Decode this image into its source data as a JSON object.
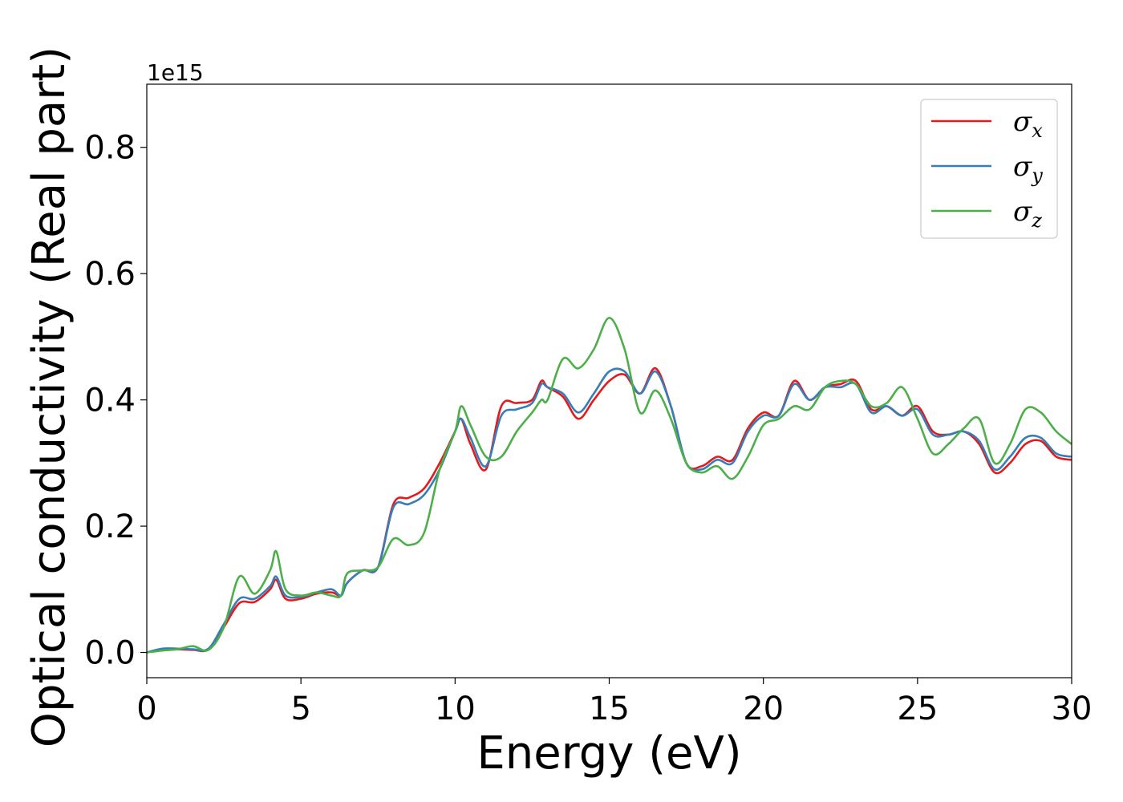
{
  "chart_data": {
    "type": "line",
    "xlabel": "Energy (eV)",
    "ylabel": "Optical conductivity (Real part)",
    "y_offset_label": "1e15",
    "xlim": [
      0,
      30
    ],
    "ylim": [
      -0.04,
      0.9
    ],
    "x_ticks": [
      0,
      5,
      10,
      15,
      20,
      25,
      30
    ],
    "x_tick_labels": [
      "0",
      "5",
      "10",
      "15",
      "20",
      "25",
      "30"
    ],
    "y_ticks": [
      0.0,
      0.2,
      0.4,
      0.6,
      0.8
    ],
    "y_tick_labels": [
      "0.0",
      "0.2",
      "0.4",
      "0.6",
      "0.8"
    ],
    "grid": false,
    "legend_position": "top-right",
    "x": [
      0,
      0.5,
      1,
      1.5,
      2,
      2.5,
      3,
      3.5,
      4,
      4.2,
      4.5,
      5,
      5.5,
      6,
      6.3,
      6.5,
      7,
      7.5,
      8,
      8.5,
      9,
      9.5,
      10,
      10.2,
      10.5,
      11,
      11.5,
      12,
      12.5,
      12.8,
      13,
      13.5,
      14,
      14.5,
      15,
      15.5,
      16,
      16.5,
      17,
      17.5,
      18,
      18.5,
      19,
      19.5,
      20,
      20.5,
      21,
      21.5,
      22,
      22.5,
      23,
      23.5,
      24,
      24.5,
      25,
      25.5,
      26,
      26.5,
      27,
      27.5,
      28,
      28.5,
      29,
      29.5,
      30
    ],
    "series": [
      {
        "name": "σx",
        "label_base": "σ",
        "label_sub": "x",
        "color": "#e41a1c",
        "values": [
          0.0,
          0.005,
          0.005,
          0.004,
          0.005,
          0.04,
          0.078,
          0.08,
          0.1,
          0.115,
          0.085,
          0.085,
          0.093,
          0.095,
          0.09,
          0.11,
          0.13,
          0.135,
          0.235,
          0.245,
          0.26,
          0.3,
          0.35,
          0.37,
          0.33,
          0.29,
          0.39,
          0.395,
          0.4,
          0.43,
          0.42,
          0.405,
          0.37,
          0.4,
          0.43,
          0.44,
          0.41,
          0.45,
          0.39,
          0.3,
          0.295,
          0.31,
          0.305,
          0.355,
          0.38,
          0.375,
          0.43,
          0.4,
          0.42,
          0.425,
          0.43,
          0.385,
          0.39,
          0.375,
          0.39,
          0.35,
          0.345,
          0.35,
          0.33,
          0.285,
          0.3,
          0.33,
          0.335,
          0.31,
          0.305
        ]
      },
      {
        "name": "σy",
        "label_base": "σ",
        "label_sub": "y",
        "color": "#377eb8",
        "values": [
          0.0,
          0.006,
          0.006,
          0.005,
          0.006,
          0.045,
          0.085,
          0.085,
          0.105,
          0.12,
          0.09,
          0.088,
          0.095,
          0.1,
          0.09,
          0.11,
          0.13,
          0.135,
          0.23,
          0.235,
          0.25,
          0.29,
          0.35,
          0.37,
          0.34,
          0.295,
          0.375,
          0.385,
          0.395,
          0.425,
          0.42,
          0.41,
          0.38,
          0.41,
          0.445,
          0.445,
          0.41,
          0.445,
          0.39,
          0.3,
          0.29,
          0.305,
          0.3,
          0.35,
          0.375,
          0.375,
          0.425,
          0.4,
          0.42,
          0.42,
          0.425,
          0.38,
          0.39,
          0.375,
          0.385,
          0.345,
          0.345,
          0.35,
          0.335,
          0.29,
          0.31,
          0.34,
          0.34,
          0.315,
          0.31
        ]
      },
      {
        "name": "σz",
        "label_base": "σ",
        "label_sub": "z",
        "color": "#4daf4a",
        "values": [
          0.0,
          0.003,
          0.005,
          0.01,
          0.004,
          0.04,
          0.12,
          0.093,
          0.13,
          0.16,
          0.1,
          0.09,
          0.095,
          0.09,
          0.09,
          0.125,
          0.13,
          0.135,
          0.18,
          0.17,
          0.19,
          0.29,
          0.35,
          0.39,
          0.36,
          0.31,
          0.31,
          0.35,
          0.38,
          0.4,
          0.4,
          0.465,
          0.45,
          0.48,
          0.53,
          0.48,
          0.38,
          0.415,
          0.37,
          0.3,
          0.285,
          0.295,
          0.275,
          0.31,
          0.36,
          0.37,
          0.39,
          0.385,
          0.42,
          0.43,
          0.425,
          0.39,
          0.395,
          0.42,
          0.37,
          0.315,
          0.33,
          0.355,
          0.37,
          0.3,
          0.33,
          0.385,
          0.38,
          0.35,
          0.33
        ]
      }
    ]
  }
}
